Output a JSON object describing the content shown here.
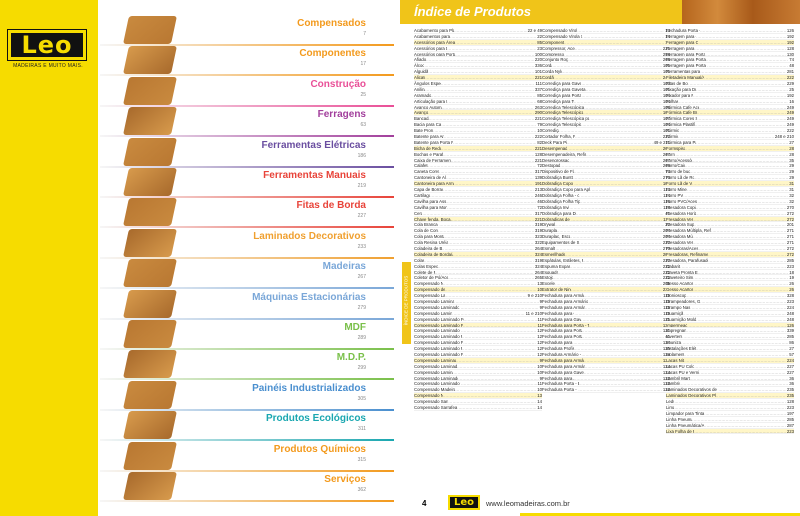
{
  "logo": {
    "text": "Leo",
    "tagline": "MADEIRAS E MUITO MAIS."
  },
  "categories": [
    {
      "title": "Compensados",
      "page": "7",
      "color": "#f39a1d"
    },
    {
      "title": "Componentes",
      "page": "17",
      "color": "#f39a1d"
    },
    {
      "title": "Construção",
      "page": "25",
      "color": "#e94f97"
    },
    {
      "title": "Ferragens",
      "page": "63",
      "color": "#a23f9c"
    },
    {
      "title": "Ferramentas Elétricas",
      "page": "186",
      "color": "#6a4ea0"
    },
    {
      "title": "Ferramentas Manuais",
      "page": "219",
      "color": "#e8443a"
    },
    {
      "title": "Fitas de Borda",
      "page": "227",
      "color": "#e8443a"
    },
    {
      "title": "Laminados Decorativos",
      "page": "233",
      "color": "#f0a030"
    },
    {
      "title": "Madeiras",
      "page": "267",
      "color": "#7aa7d8"
    },
    {
      "title": "Máquinas Estacionárias",
      "page": "279",
      "color": "#7aa7d8"
    },
    {
      "title": "MDF",
      "page": "289",
      "color": "#7ac04a"
    },
    {
      "title": "M.D.P.",
      "page": "299",
      "color": "#7ac04a"
    },
    {
      "title": "Painéis Industrializados",
      "page": "305",
      "color": "#4a8fcf"
    },
    {
      "title": "Produtos Ecológicos",
      "page": "311",
      "color": "#1aa7b0"
    },
    {
      "title": "Produtos Químicos",
      "page": "315",
      "color": "#f39a1d"
    },
    {
      "title": "Serviços",
      "page": "362",
      "color": "#f39a1d"
    }
  ],
  "index": {
    "title": "Índice de Produtos",
    "side_tab": "ÍNDICE DE PRODUTOS",
    "columns": [
      [
        [
          "Acabamento para Placa Cimentícia",
          "22 e 49"
        ],
        [
          "Acabamentos para Drywall",
          "22"
        ],
        [
          "Acessórios para Área de Serviço",
          "85"
        ],
        [
          "Acessórios para Drywall",
          "23"
        ],
        [
          "Acessórios para Porta Passagem",
          "100"
        ],
        [
          "Afiador",
          "220"
        ],
        [
          "Álcool",
          "336"
        ],
        [
          "Alguidão",
          "101"
        ],
        [
          "Alicate",
          "221"
        ],
        [
          "Ângulos Especiais",
          "111"
        ],
        [
          "Anilina",
          "337"
        ],
        [
          "Aramados",
          "85"
        ],
        [
          "Articulação para Móveis",
          "68"
        ],
        [
          "Avanço Automático",
          "263"
        ],
        [
          "Avanços",
          "290"
        ],
        [
          "Bancada",
          "221"
        ],
        [
          "Bacia para Cabide",
          "79"
        ],
        [
          "Bate Pronto",
          "10"
        ],
        [
          "Batente para Armário",
          "222"
        ],
        [
          "Batente para Porta Passagem",
          "82"
        ],
        [
          "Bicha de Redução",
          "221"
        ],
        [
          "Bochas e Parafusos",
          "128"
        ],
        [
          "Caixa de Ferramenta/Maleta",
          "221"
        ],
        [
          "Calafeto",
          "72"
        ],
        [
          "Caneta Corretiva",
          "317"
        ],
        [
          "Cantoneira de Alumínio",
          "139"
        ],
        [
          "Cantoneira para Armário, Interna",
          "191"
        ],
        [
          "Capa de Borracheiro",
          "213"
        ],
        [
          "Cartilagos",
          "246"
        ],
        [
          "Cavilha para Assoalho",
          "46"
        ],
        [
          "Cavilha para Montagem",
          "72"
        ],
        [
          "Cera",
          "317"
        ],
        [
          "Chave fenda, Boca, Automática",
          "221"
        ],
        [
          "Cola Branca PVA",
          "319"
        ],
        [
          "Cola de Contato",
          "319"
        ],
        [
          "Cola para Montagem",
          "323"
        ],
        [
          "Cola Resina Uréia Formol",
          "322"
        ],
        [
          "Coladeira de Borda",
          "264"
        ],
        [
          "Coladeira de Borda/Acessórios",
          "324"
        ],
        [
          "Colas",
          "319"
        ],
        [
          "Colas Especiais",
          "324"
        ],
        [
          "Colete de PU",
          "264"
        ],
        [
          "Coletor de Pó/Acessórios",
          "265"
        ],
        [
          "Compensado Naval",
          "13"
        ],
        [
          "Compensado de LED",
          "10"
        ],
        [
          "Compensado Laminado",
          "9 e 210"
        ],
        [
          "Compensado Laminado Cedro",
          "9"
        ],
        [
          "Compensado Laminado Embalagem",
          "9"
        ],
        [
          "Compensado Laminado Folheado",
          "11 e 210"
        ],
        [
          "Compensado Laminado Folheado Cerejeira",
          "11"
        ],
        [
          "Compensado Laminado Folheado Cumaru",
          "11"
        ],
        [
          "Compensado Laminado Folheado Freijó",
          "12"
        ],
        [
          "Compensado Laminado Folheado Imbuia",
          "12"
        ],
        [
          "Compensado Laminado Folheado Jequitibá",
          "12"
        ],
        [
          "Compensado Laminado Folheado Marfim",
          "12"
        ],
        [
          "Compensado Laminado Folheado Sucupira",
          "12"
        ],
        [
          "Compensado Laminado Madeirit",
          "9"
        ],
        [
          "Compensado Laminado Sumaúma",
          "10"
        ],
        [
          "Compensado Laminado Tauari",
          "10"
        ],
        [
          "Compensado Laminado Terra Nova",
          "9"
        ],
        [
          "Compensado Laminado Virola Standard",
          "11"
        ],
        [
          "Compensado Madeiras Tropicais",
          "10"
        ],
        [
          "Compensado Naval",
          "13"
        ],
        [
          "Compensado Sarrafeado",
          "14"
        ],
        [
          "Compensado Sarrafeado Folheado",
          "14"
        ]
      ],
      [
        [
          "Compensado Virola Naval",
          "13"
        ],
        [
          "Compensado Virola Sarrafeado",
          "14"
        ],
        [
          "Componentes",
          "19"
        ],
        [
          "Compressor, Acessórios",
          "221"
        ],
        [
          "Compressores",
          "258"
        ],
        [
          "Conjunto Roçador",
          "265"
        ],
        [
          "Corda",
          "101"
        ],
        [
          "Corda Nylon",
          "101"
        ],
        [
          "Cordão",
          "248"
        ],
        [
          "Corrediça para Gaveta Invisível",
          "103"
        ],
        [
          "Corrediça para Gaveta Fixação Base",
          "101"
        ],
        [
          "Corrediça para Porta Suspensa",
          "104"
        ],
        [
          "Corrediça para Teclado",
          "104"
        ],
        [
          "Corrediça Telescópica para Gaveta",
          "105"
        ],
        [
          "Corrediça Telescópica para Mesa",
          "107"
        ],
        [
          "Corrediça Telescópica para Porta Embutir",
          "107"
        ],
        [
          "Corrediça Telescópica Roldana",
          "104"
        ],
        [
          "Corrediças",
          "101"
        ],
        [
          "Cortador Folha, Fórmica",
          "222"
        ],
        [
          "Deck Para Piscina",
          "49 e 211"
        ],
        [
          "Desempenadeira",
          "265"
        ],
        [
          "Desempenadeira, Refinamento Corte",
          "267"
        ],
        [
          "Desengrossadeira",
          "267"
        ],
        [
          "Destopador",
          "269"
        ],
        [
          "Dispositivo de Fixação",
          "73"
        ],
        [
          "Dobradiça Bunttensing",
          "270"
        ],
        [
          "Dobradiça Copo 35 mm",
          "108"
        ],
        [
          "Dobradiça Copo para Aplicações Especiais",
          "113"
        ],
        [
          "Dobradiça Folha - com Miola",
          "114"
        ],
        [
          "Dobradiça Folha Tipo Vaivém",
          "116"
        ],
        [
          "Dobradiça Invisível",
          "118"
        ],
        [
          "Dobradiça para Divisória",
          "41"
        ],
        [
          "Dobradiças de Folha",
          "114"
        ],
        [
          "Drywall",
          "22"
        ],
        [
          "Duraplac",
          "204"
        ],
        [
          "Duraplac, Escaplac",
          "204"
        ],
        [
          "Equipamentos de Segurança",
          "222"
        ],
        [
          "Esmalte",
          "270"
        ],
        [
          "Esmerilhadeira",
          "201"
        ],
        [
          "Espátulas, Estiletes, Raspadores",
          "222"
        ],
        [
          "Espuma Expansiva",
          "222"
        ],
        [
          "Esquadro",
          "222"
        ],
        [
          "Estojo",
          "222"
        ],
        [
          "Excelex",
          "205"
        ],
        [
          "Extrator de Ninguém",
          "238"
        ],
        [
          "Fechadura para Armário - Embutir",
          "119"
        ],
        [
          "Fechadura para Armário - Sobrepor Vale",
          "119"
        ],
        [
          "Fechadura para Armário - Universal",
          "119"
        ],
        [
          "Fechadura para Gaveta",
          "119"
        ],
        [
          "Fechadura para Gaveta de Aço",
          "121"
        ],
        [
          "Fechadura para Porta - Trava Segurança",
          "121"
        ],
        [
          "Fechadura para Porta de Correr",
          "121"
        ],
        [
          "Fechadura para Porta Divisória",
          "41"
        ],
        [
          "Fechadura para Vitrine",
          "124"
        ],
        [
          "Fechadura Profissional",
          "125"
        ],
        [
          "Fechadura Armário - Magnético",
          "124"
        ],
        [
          "Fechadura para Armário - Pressão",
          "125"
        ],
        [
          "Fechadura para Armário - Sobrepor",
          "124"
        ],
        [
          "Fechadura para Gaveta - Bloqueio",
          "124"
        ],
        [
          "Fechadura para Janela",
          "125"
        ],
        [
          "Fechadura Porta - Embutida",
          "125"
        ],
        [
          "Fechadura Porta - Sobrepor",
          "126"
        ]
      ],
      [
        [
          "Fechadura Porta - Tarjeta",
          "126"
        ],
        [
          "Ferragem para Cama",
          "192"
        ],
        [
          "Ferragem para Cozinha",
          "192"
        ],
        [
          "Ferragem para Porta",
          "128"
        ],
        [
          "Ferragem para Porta de Correr",
          "130"
        ],
        [
          "Ferragem para Porta de Correr",
          "74"
        ],
        [
          "Ferragem para Porta Sarrafeada",
          "48"
        ],
        [
          "Ferramentas para Drywall",
          "281"
        ],
        [
          "Filetadeira Manual/Acessórios",
          "222"
        ],
        [
          "Fitas de Borda",
          "229"
        ],
        [
          "Fixação para Drywall",
          "25"
        ],
        [
          "Fixador para Porta",
          "192"
        ],
        [
          "Folhas",
          "16"
        ],
        [
          "Fórmica Cafe Acetinado",
          "249"
        ],
        [
          "Fórmica Cafe Brilhosa",
          "249"
        ],
        [
          "Fórmica Cores Sólidas",
          "249"
        ],
        [
          "Fórmica Plastificada",
          "249"
        ],
        [
          "Fórmica",
          "222"
        ],
        [
          "Fórmica",
          "248 e 210"
        ],
        [
          "Fórmica para Parede",
          "27"
        ],
        [
          "Formspisos",
          "28"
        ],
        [
          "Forro",
          "28"
        ],
        [
          "Forro/Acessórios",
          "35"
        ],
        [
          "Forro/Caixa",
          "29"
        ],
        [
          "Forro de buque",
          "29"
        ],
        [
          "Forro Lã de Rocha",
          "29"
        ],
        [
          "Forro Lã de Vidro",
          "31"
        ],
        [
          "Forro Mineral",
          "31"
        ],
        [
          "Forro PVC",
          "32"
        ],
        [
          "Forro PVC/Acessórios",
          "32"
        ],
        [
          "Fresadora Copiadora",
          "270"
        ],
        [
          "Fresadora Horizontal",
          "272"
        ],
        [
          "Fresadora Vertical",
          "272"
        ],
        [
          "Fresadora Superior",
          "201"
        ],
        [
          "Fresadora Múltipla, Refinamento Corte",
          "271"
        ],
        [
          "Fresadora Múltipla",
          "271"
        ],
        [
          "Fresadora Vertical",
          "271"
        ],
        [
          "Fresadoras/Acessórios",
          "272"
        ],
        [
          "Fresadoras, Refinamento de Corte",
          "272"
        ],
        [
          "Fresadora, Parafusadeira e Bateria",
          "285"
        ],
        [
          "Gabarito",
          "223"
        ],
        [
          "Gaveta Pronta Europa",
          "18"
        ],
        [
          "Gaveteiro Simples",
          "19"
        ],
        [
          "Gesso Acartonado",
          "26"
        ],
        [
          "Gesso Acartonado",
          "26"
        ],
        [
          "Gonioscopia",
          "328"
        ],
        [
          "Grampeadores, Grampos",
          "223"
        ],
        [
          "Grampo Nassko",
          "224"
        ],
        [
          "Guarnição",
          "248"
        ],
        [
          "Guarnição Moldurada",
          "248"
        ],
        [
          "Impermeação",
          "126"
        ],
        [
          "Impregnante",
          "339"
        ],
        [
          "Invertente",
          "285"
        ],
        [
          "Imunizah",
          "86"
        ],
        [
          "Instalações Elétricas",
          "27"
        ],
        [
          "Isolamento",
          "57"
        ],
        [
          "Lacas Nitro",
          "224"
        ],
        [
          "Lacas PU Coloridas",
          "227"
        ],
        [
          "Lacas PU e Vernizes PU",
          "227"
        ],
        [
          "Lambril Martins",
          "36"
        ],
        [
          "Lambris",
          "36"
        ],
        [
          "Laminados Decorativos de Alta Pressão - Fórmica",
          "235"
        ],
        [
          "Laminados Decorativos Plásticos - Formiplast",
          "235"
        ],
        [
          "Leds",
          "128"
        ],
        [
          "Lima",
          "223"
        ],
        [
          "Limpador para Tinta de Armário",
          "197"
        ],
        [
          "Linha Pneumática",
          "285"
        ],
        [
          "Linha Pneumática/Acessórios",
          "287"
        ],
        [
          "Lixa Folha de Papel",
          "223"
        ]
      ]
    ]
  },
  "footer": {
    "page_number": "4",
    "logo_text": "Leo",
    "url": "www.leomadeiras.com.br"
  }
}
